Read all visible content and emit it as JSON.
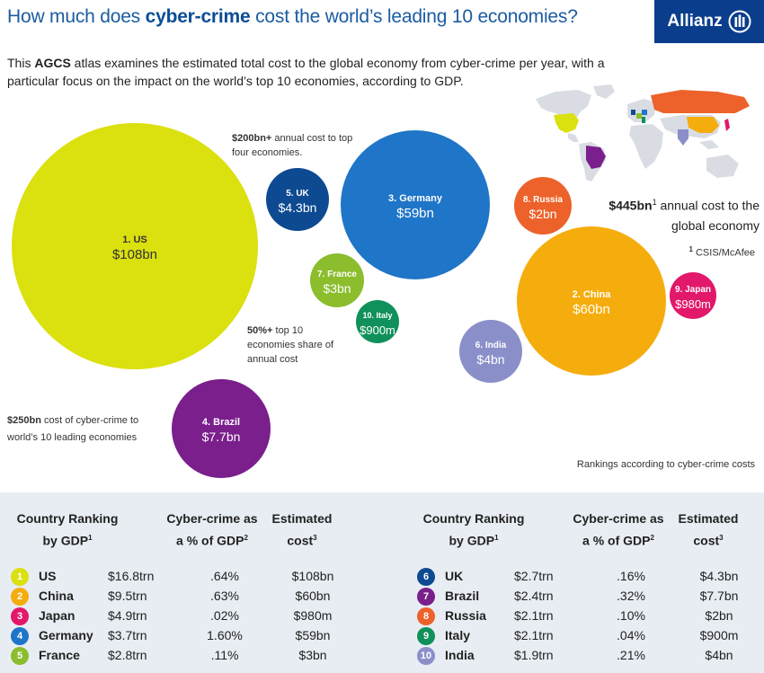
{
  "header": {
    "title_prefix": "How much does ",
    "title_bold": "cyber-crime",
    "title_suffix": " cost the world’s leading 10 economies?",
    "logo_text": "Allianz"
  },
  "intro": {
    "prefix": "This ",
    "bold": "AGCS",
    "text": " atlas examines the estimated total cost to the global economy from cyber-crime per year, with a particular focus on the impact on the world’s top 10 economies, according to GDP."
  },
  "notes": {
    "top_four_bold": "$200bn+",
    "top_four_text": " annual cost to top four economies.",
    "share_bold": "50%+",
    "share_text": " top 10 economies share of annual cost",
    "leading_bold": "$250bn",
    "leading_text": " cost of cyber-crime to world’s 10 leading economies",
    "global_bold": "$445bn",
    "global_sup": "1",
    "global_text": " annual cost to the global economy",
    "source_sup": "1",
    "source_text": " CSIS/McAfee",
    "ranking_text": "Rankings according to cyber-crime costs"
  },
  "chart_data": {
    "type": "bubble",
    "unit": "$bn",
    "bubbles": [
      {
        "rank": 1,
        "name": "US",
        "label": "1. US",
        "value_label": "$108bn",
        "value": 108,
        "color": "#dbe00f"
      },
      {
        "rank": 2,
        "name": "China",
        "label": "2. China",
        "value_label": "$60bn",
        "value": 60,
        "color": "#f5ad0d"
      },
      {
        "rank": 3,
        "name": "Germany",
        "label": "3. Germany",
        "value_label": "$59bn",
        "value": 59,
        "color": "#1f75c7"
      },
      {
        "rank": 4,
        "name": "Brazil",
        "label": "4. Brazil",
        "value_label": "$7.7bn",
        "value": 7.7,
        "color": "#7a1f8c"
      },
      {
        "rank": 5,
        "name": "UK",
        "label": "5. UK",
        "value_label": "$4.3bn",
        "value": 4.3,
        "color": "#0d4a91"
      },
      {
        "rank": 6,
        "name": "India",
        "label": "6. India",
        "value_label": "$4bn",
        "value": 4,
        "color": "#8b8fc9"
      },
      {
        "rank": 7,
        "name": "France",
        "label": "7. France",
        "value_label": "$3bn",
        "value": 3,
        "color": "#8bbd2c"
      },
      {
        "rank": 8,
        "name": "Russia",
        "label": "8. Russia",
        "value_label": "$2bn",
        "value": 2,
        "color": "#ec622a"
      },
      {
        "rank": 9,
        "name": "Japan",
        "label": "9. Japan",
        "value_label": "$980m",
        "value": 0.98,
        "color": "#e2186a"
      },
      {
        "rank": 10,
        "name": "Italy",
        "label": "10. Italy",
        "value_label": "$900m",
        "value": 0.9,
        "color": "#10905a"
      }
    ]
  },
  "table": {
    "headers": [
      {
        "line1": "Country Ranking",
        "line2": "by GDP",
        "sup": "1"
      },
      {
        "line1": "Cyber-crime as",
        "line2": "a % of GDP",
        "sup": "2"
      },
      {
        "line1": "Estimated",
        "line2": "cost",
        "sup": "3"
      }
    ],
    "rows": [
      {
        "rank": "1",
        "country": "US",
        "gdp": "$16.8trn",
        "pct": ".64%",
        "cost": "$108bn",
        "color": "#dbe00f"
      },
      {
        "rank": "2",
        "country": "China",
        "gdp": "$9.5trn",
        "pct": ".63%",
        "cost": "$60bn",
        "color": "#f5ad0d"
      },
      {
        "rank": "3",
        "country": "Japan",
        "gdp": "$4.9trn",
        "pct": ".02%",
        "cost": "$980m",
        "color": "#e2186a"
      },
      {
        "rank": "4",
        "country": "Germany",
        "gdp": "$3.7trn",
        "pct": "1.60%",
        "cost": "$59bn",
        "color": "#1f75c7"
      },
      {
        "rank": "5",
        "country": "France",
        "gdp": "$2.8trn",
        "pct": ".11%",
        "cost": "$3bn",
        "color": "#8bbd2c"
      },
      {
        "rank": "6",
        "country": "UK",
        "gdp": "$2.7trn",
        "pct": ".16%",
        "cost": "$4.3bn",
        "color": "#0d4a91"
      },
      {
        "rank": "7",
        "country": "Brazil",
        "gdp": "$2.4trn",
        "pct": ".32%",
        "cost": "$7.7bn",
        "color": "#7a1f8c"
      },
      {
        "rank": "8",
        "country": "Russia",
        "gdp": "$2.1trn",
        "pct": ".10%",
        "cost": "$2bn",
        "color": "#ec622a"
      },
      {
        "rank": "9",
        "country": "Italy",
        "gdp": "$2.1trn",
        "pct": ".04%",
        "cost": "$900m",
        "color": "#10905a"
      },
      {
        "rank": "10",
        "country": "India",
        "gdp": "$1.9trn",
        "pct": ".21%",
        "cost": "$4bn",
        "color": "#8b8fc9"
      }
    ]
  }
}
